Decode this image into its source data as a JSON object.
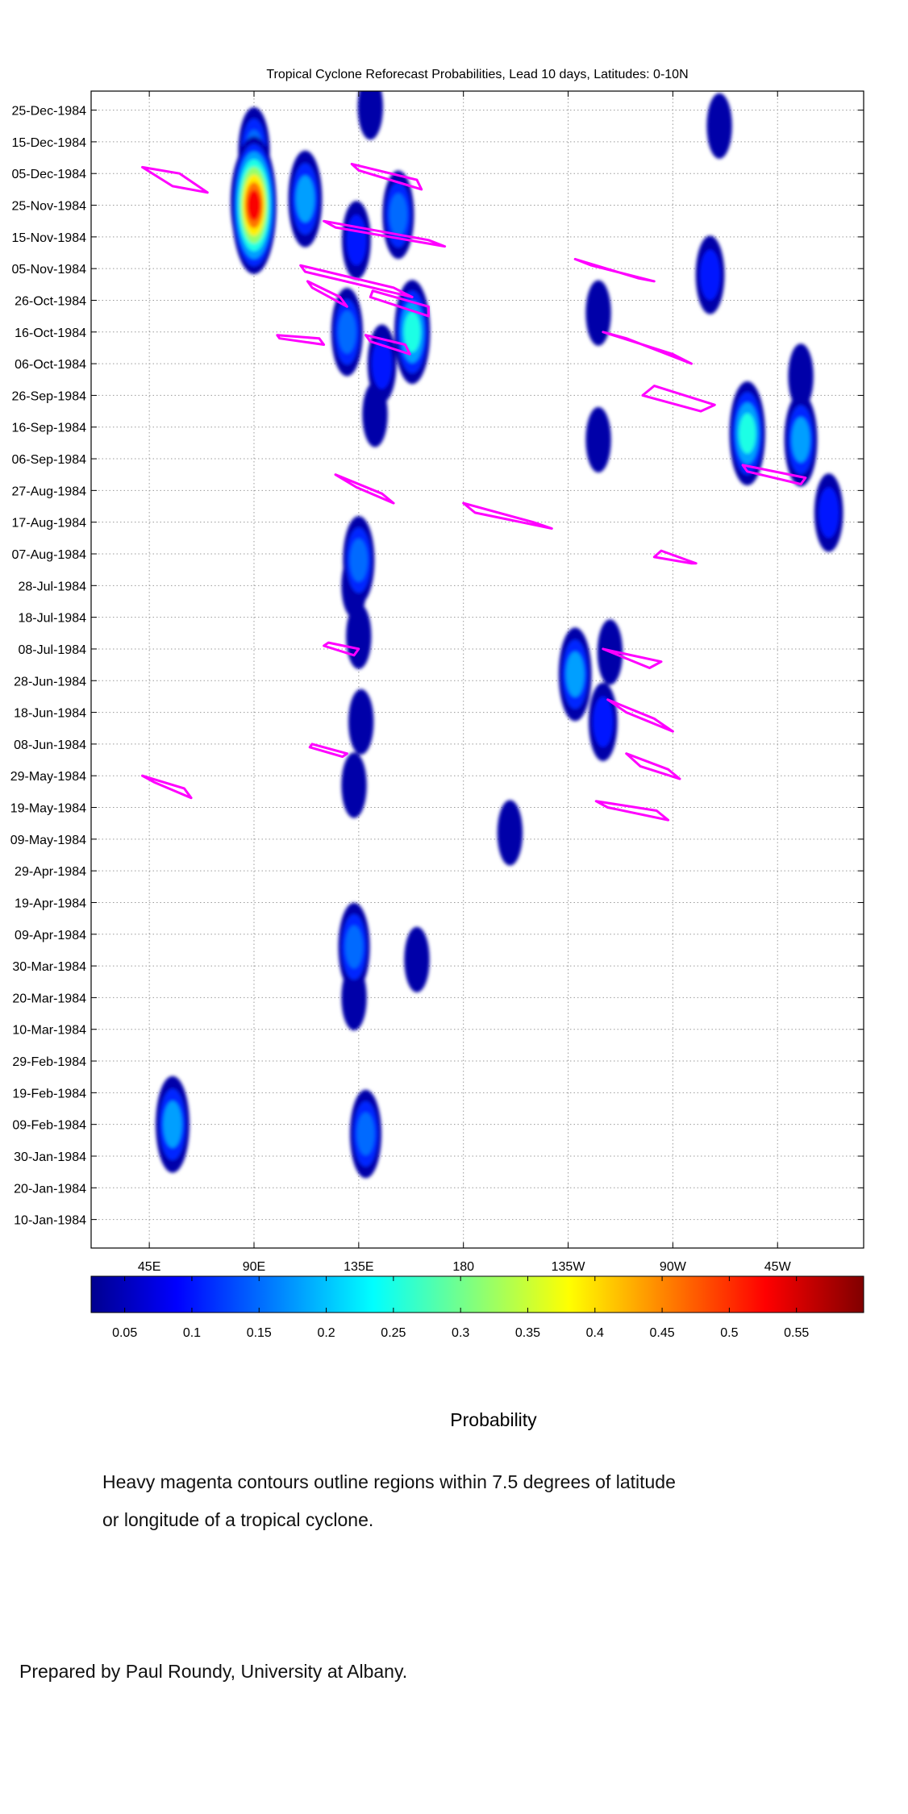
{
  "chart_data": {
    "type": "heatmap",
    "title": "Tropical Cyclone Reforecast Probabilities, Lead 10 days, Latitudes: 0-10N",
    "x_tick_labels": [
      "45E",
      "90E",
      "135E",
      "180",
      "135W",
      "90W",
      "45W"
    ],
    "x_tick_values_deg": [
      45,
      90,
      135,
      180,
      225,
      270,
      315
    ],
    "xlim_deg_east": [
      20,
      352
    ],
    "y_tick_labels": [
      "25-Dec-1984",
      "15-Dec-1984",
      "05-Dec-1984",
      "25-Nov-1984",
      "15-Nov-1984",
      "05-Nov-1984",
      "26-Oct-1984",
      "16-Oct-1984",
      "06-Oct-1984",
      "26-Sep-1984",
      "16-Sep-1984",
      "06-Sep-1984",
      "27-Aug-1984",
      "17-Aug-1984",
      "07-Aug-1984",
      "28-Jul-1984",
      "18-Jul-1984",
      "08-Jul-1984",
      "28-Jun-1984",
      "18-Jun-1984",
      "08-Jun-1984",
      "29-May-1984",
      "19-May-1984",
      "09-May-1984",
      "29-Apr-1984",
      "19-Apr-1984",
      "09-Apr-1984",
      "30-Mar-1984",
      "20-Mar-1984",
      "10-Mar-1984",
      "29-Feb-1984",
      "19-Feb-1984",
      "09-Feb-1984",
      "30-Jan-1984",
      "20-Jan-1984",
      "10-Jan-1984"
    ],
    "ylim": [
      "1984-01-01",
      "1984-12-31"
    ],
    "grid": true,
    "colorbar": {
      "label": "Probability",
      "tick_labels": [
        "0.05",
        "0.1",
        "0.15",
        "0.2",
        "0.25",
        "0.3",
        "0.35",
        "0.4",
        "0.45",
        "0.5",
        "0.55"
      ],
      "tick_values": [
        0.05,
        0.1,
        0.15,
        0.2,
        0.25,
        0.3,
        0.35,
        0.4,
        0.45,
        0.5,
        0.55
      ],
      "range": [
        0.025,
        0.6
      ],
      "colormap": "jet"
    },
    "probability_regions": [
      {
        "lon": 90,
        "date": "1984-11-25",
        "prob": 0.55
      },
      {
        "lon": 88,
        "date": "1984-11-26",
        "prob": 0.3
      },
      {
        "lon": 90,
        "date": "1984-12-12",
        "prob": 0.15
      },
      {
        "lon": 112,
        "date": "1984-11-27",
        "prob": 0.2
      },
      {
        "lon": 152,
        "date": "1984-11-22",
        "prob": 0.15
      },
      {
        "lon": 158,
        "date": "1984-10-16",
        "prob": 0.25
      },
      {
        "lon": 130,
        "date": "1984-10-16",
        "prob": 0.15
      },
      {
        "lon": 145,
        "date": "1984-10-06",
        "prob": 0.1
      },
      {
        "lon": 142,
        "date": "1984-09-20",
        "prob": 0.05
      },
      {
        "lon": 140,
        "date": "1984-12-26",
        "prob": 0.05
      },
      {
        "lon": 134,
        "date": "1984-11-14",
        "prob": 0.1
      },
      {
        "lon": 286,
        "date": "1984-11-03",
        "prob": 0.1
      },
      {
        "lon": 302,
        "date": "1984-09-14",
        "prob": 0.25
      },
      {
        "lon": 325,
        "date": "1984-09-12",
        "prob": 0.18
      },
      {
        "lon": 337,
        "date": "1984-08-20",
        "prob": 0.1
      },
      {
        "lon": 325,
        "date": "1984-10-02",
        "prob": 0.05
      },
      {
        "lon": 290,
        "date": "1984-12-20",
        "prob": 0.05
      },
      {
        "lon": 135,
        "date": "1984-08-05",
        "prob": 0.15
      },
      {
        "lon": 133,
        "date": "1984-07-28",
        "prob": 0.05
      },
      {
        "lon": 135,
        "date": "1984-07-12",
        "prob": 0.05
      },
      {
        "lon": 136,
        "date": "1984-06-15",
        "prob": 0.05
      },
      {
        "lon": 133,
        "date": "1984-05-26",
        "prob": 0.05
      },
      {
        "lon": 228,
        "date": "1984-06-30",
        "prob": 0.18
      },
      {
        "lon": 243,
        "date": "1984-07-07",
        "prob": 0.05
      },
      {
        "lon": 240,
        "date": "1984-06-15",
        "prob": 0.1
      },
      {
        "lon": 238,
        "date": "1984-10-22",
        "prob": 0.05
      },
      {
        "lon": 238,
        "date": "1984-09-12",
        "prob": 0.05
      },
      {
        "lon": 133,
        "date": "1984-04-05",
        "prob": 0.15
      },
      {
        "lon": 133,
        "date": "1984-03-20",
        "prob": 0.05
      },
      {
        "lon": 160,
        "date": "1984-04-01",
        "prob": 0.05
      },
      {
        "lon": 138,
        "date": "1984-02-06",
        "prob": 0.15
      },
      {
        "lon": 55,
        "date": "1984-02-09",
        "prob": 0.2
      },
      {
        "lon": 200,
        "date": "1984-05-11",
        "prob": 0.05
      }
    ],
    "tropical_cyclone_contours": [
      {
        "lon": [
          42,
          55,
          70,
          58
        ],
        "date": [
          "1984-12-07",
          "1984-12-01",
          "1984-11-29",
          "1984-12-05"
        ]
      },
      {
        "lon": [
          42,
          60,
          63,
          47
        ],
        "date": [
          "1984-05-29",
          "1984-05-25",
          "1984-05-22",
          "1984-05-27"
        ]
      },
      {
        "lon": [
          135,
          162,
          160,
          132
        ],
        "date": [
          "1984-12-06",
          "1984-11-30",
          "1984-12-03",
          "1984-12-08"
        ]
      },
      {
        "lon": [
          120,
          165,
          172,
          125
        ],
        "date": [
          "1984-11-20",
          "1984-11-14",
          "1984-11-12",
          "1984-11-18"
        ]
      },
      {
        "lon": [
          110,
          150,
          158,
          112
        ],
        "date": [
          "1984-11-06",
          "1984-10-30",
          "1984-10-27",
          "1984-11-04"
        ]
      },
      {
        "lon": [
          115,
          130,
          127,
          113
        ],
        "date": [
          "1984-10-30",
          "1984-10-24",
          "1984-10-27",
          "1984-11-01"
        ]
      },
      {
        "lon": [
          140,
          165,
          165,
          141
        ],
        "date": [
          "1984-10-27",
          "1984-10-21",
          "1984-10-24",
          "1984-10-29"
        ]
      },
      {
        "lon": [
          101,
          120,
          118,
          100
        ],
        "date": [
          "1984-10-14",
          "1984-10-12",
          "1984-10-14",
          "1984-10-15"
        ]
      },
      {
        "lon": [
          140,
          157,
          155,
          138
        ],
        "date": [
          "1984-10-13",
          "1984-10-09",
          "1984-10-12",
          "1984-10-15"
        ]
      },
      {
        "lon": [
          125,
          145,
          150,
          134
        ],
        "date": [
          "1984-09-01",
          "1984-08-26",
          "1984-08-23",
          "1984-08-28"
        ]
      },
      {
        "lon": [
          240,
          270,
          278,
          250
        ],
        "date": [
          "1984-10-16",
          "1984-10-09",
          "1984-10-06",
          "1984-10-14"
        ]
      },
      {
        "lon": [
          262,
          288,
          282,
          257
        ],
        "date": [
          "1984-09-29",
          "1984-09-23",
          "1984-09-21",
          "1984-09-26"
        ]
      },
      {
        "lon": [
          302,
          325,
          327,
          300
        ],
        "date": [
          "1984-09-02",
          "1984-08-29",
          "1984-08-31",
          "1984-09-04"
        ]
      },
      {
        "lon": [
          228,
          255,
          262,
          235
        ],
        "date": [
          "1984-11-08",
          "1984-11-02",
          "1984-11-01",
          "1984-11-06"
        ]
      },
      {
        "lon": [
          180,
          210,
          218,
          185
        ],
        "date": [
          "1984-08-23",
          "1984-08-17",
          "1984-08-15",
          "1984-08-20"
        ]
      },
      {
        "lon": [
          265,
          280,
          278,
          262
        ],
        "date": [
          "1984-08-08",
          "1984-08-04",
          "1984-08-04",
          "1984-08-06"
        ]
      },
      {
        "lon": [
          122,
          135,
          133,
          120
        ],
        "date": [
          "1984-07-10",
          "1984-07-08",
          "1984-07-06",
          "1984-07-09"
        ]
      },
      {
        "lon": [
          115,
          130,
          128,
          114
        ],
        "date": [
          "1984-06-08",
          "1984-06-05",
          "1984-06-04",
          "1984-06-07"
        ]
      },
      {
        "lon": [
          240,
          260,
          265,
          246
        ],
        "date": [
          "1984-07-08",
          "1984-07-02",
          "1984-07-04",
          "1984-07-07"
        ]
      },
      {
        "lon": [
          242,
          262,
          270,
          250
        ],
        "date": [
          "1984-06-22",
          "1984-06-16",
          "1984-06-12",
          "1984-06-18"
        ]
      },
      {
        "lon": [
          250,
          268,
          273,
          256
        ],
        "date": [
          "1984-06-05",
          "1984-05-31",
          "1984-05-28",
          "1984-06-01"
        ]
      },
      {
        "lon": [
          237,
          263,
          268,
          242
        ],
        "date": [
          "1984-05-21",
          "1984-05-18",
          "1984-05-15",
          "1984-05-19"
        ]
      }
    ]
  },
  "caption_line1": "Heavy magenta contours outline regions within 7.5 degrees of latitude",
  "caption_line2": "or longitude of a tropical cyclone.",
  "credit": "Prepared by Paul Roundy, University at Albany.",
  "colors": {
    "contour": "#ff00ff",
    "grid": "#9a9a9a",
    "low_end": "#00008f",
    "high_end": "#800000"
  }
}
